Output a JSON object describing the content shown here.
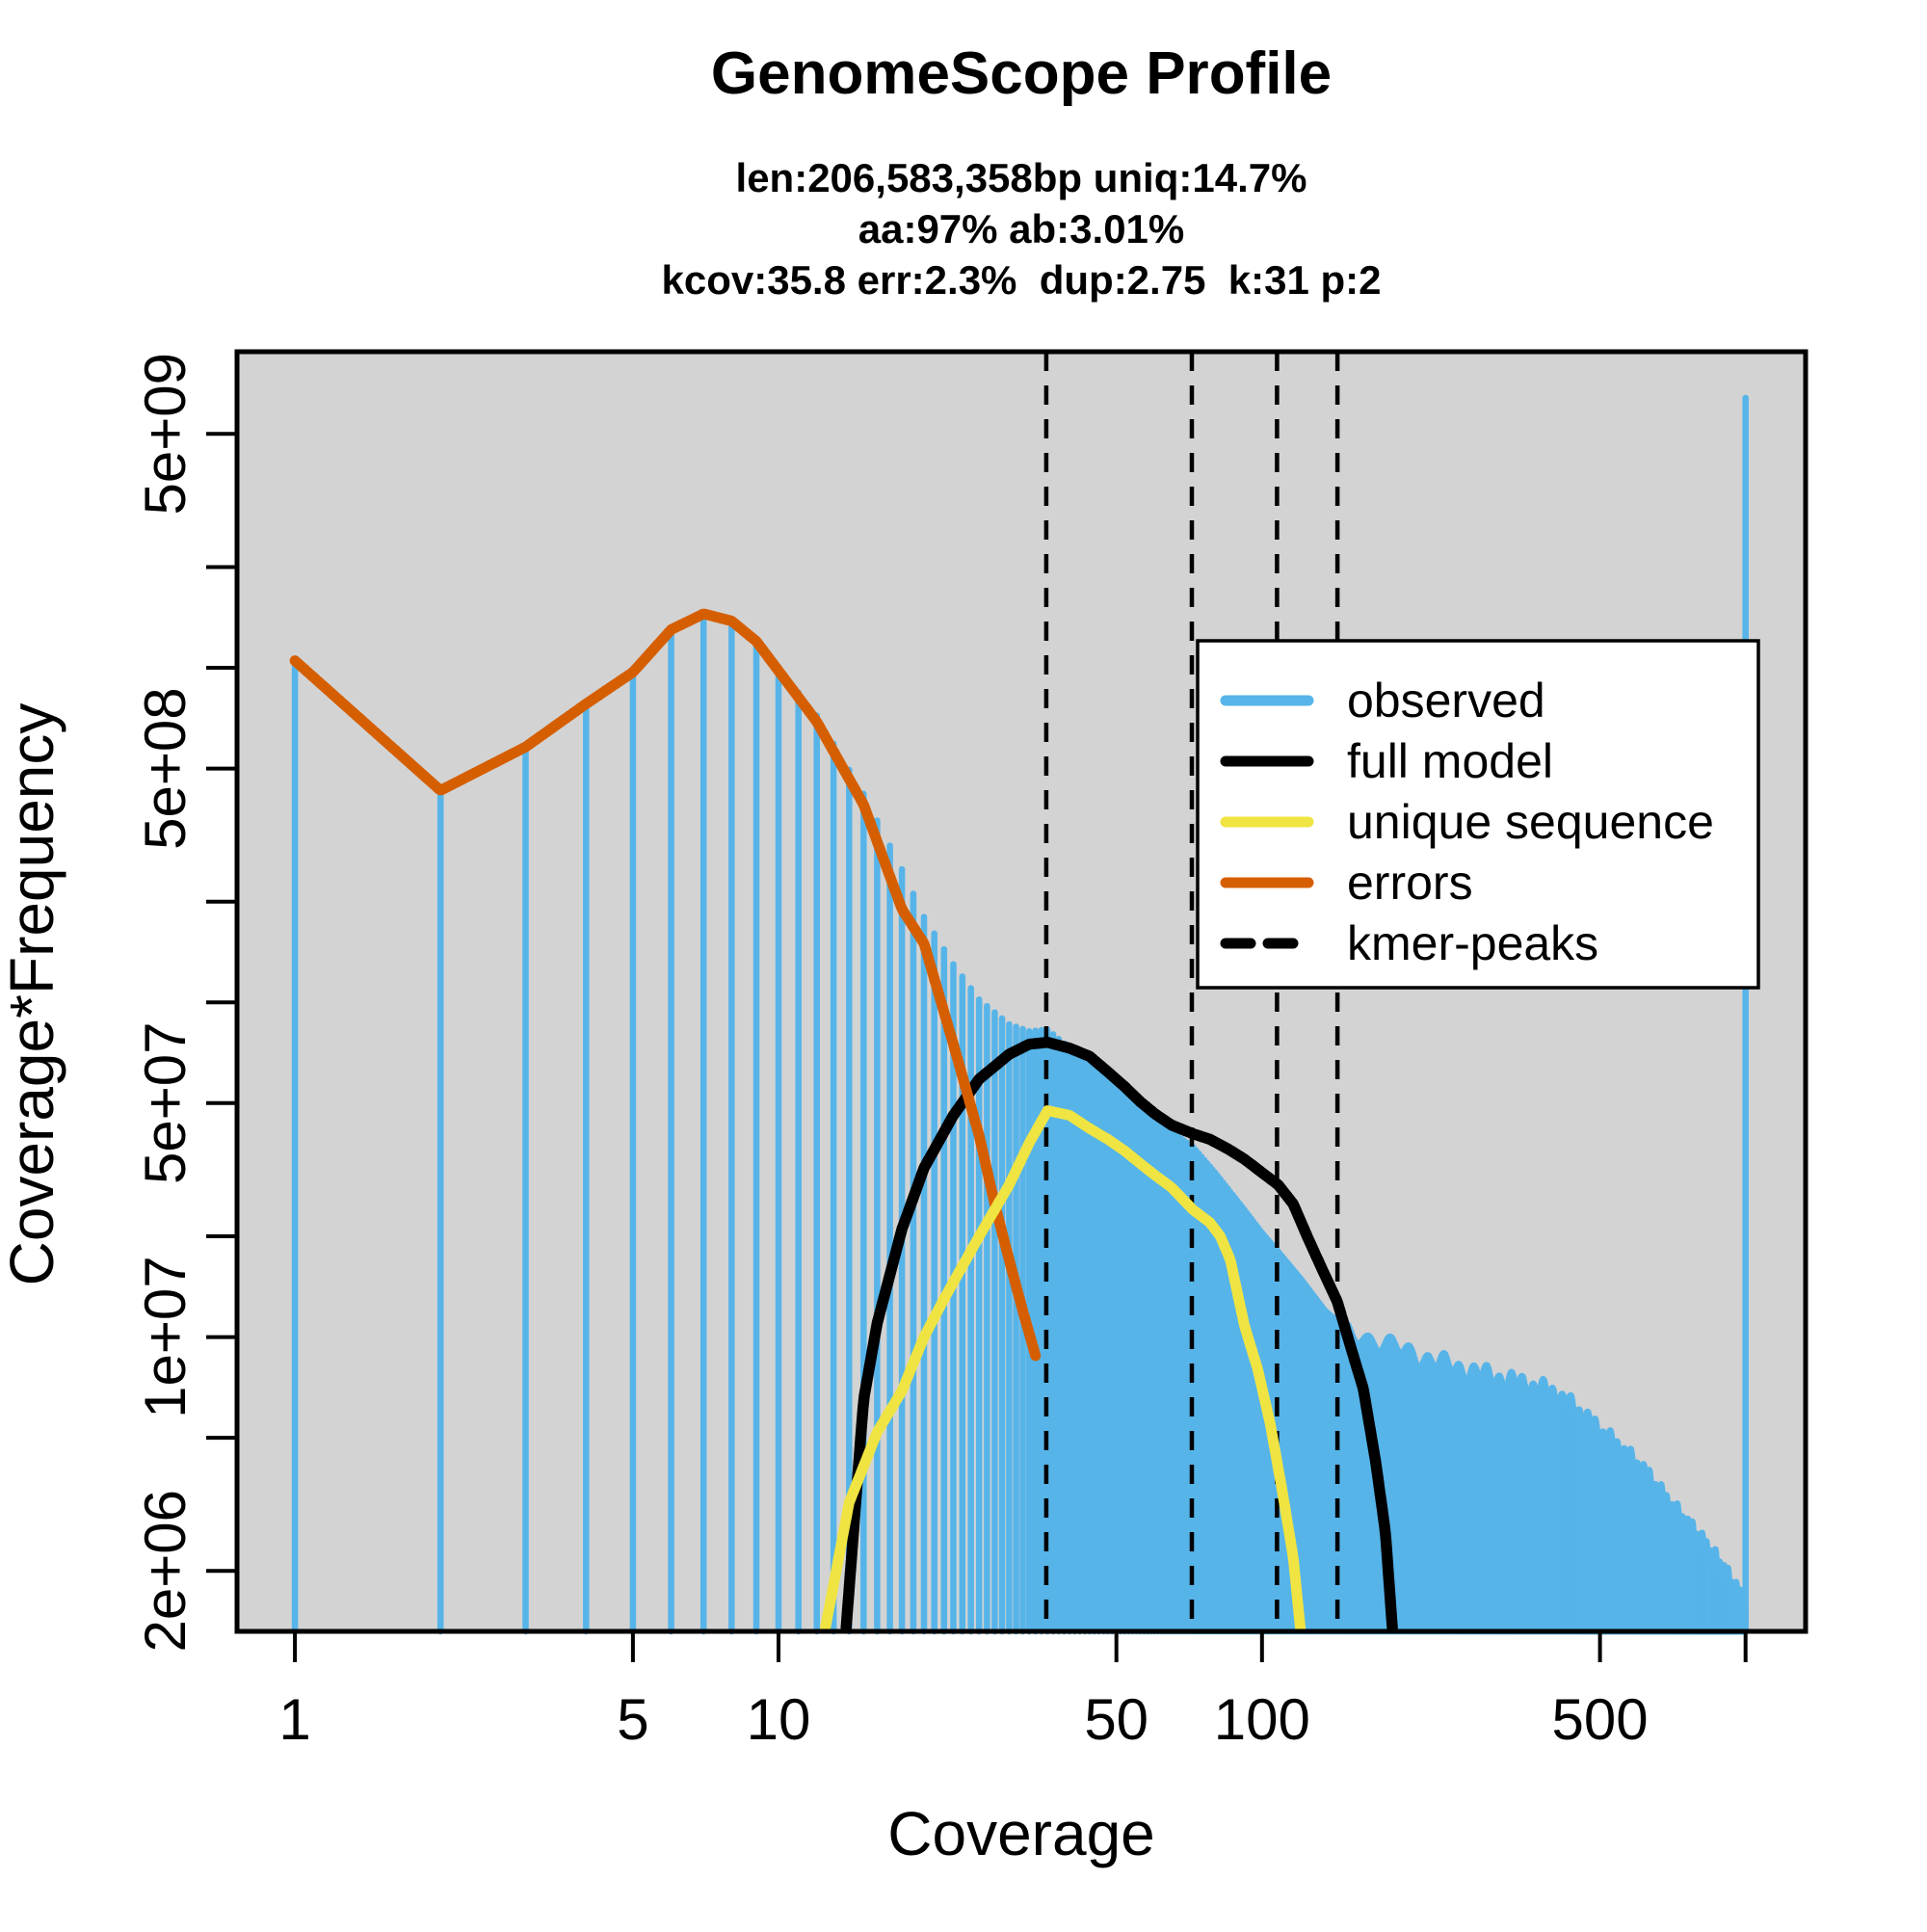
{
  "title": "GenomeScope Profile",
  "subtitle": {
    "line1": "len:206,583,358bp uniq:14.7%",
    "line2": "aa:97% ab:3.01%",
    "line3": "kcov:35.8 err:2.3%  dup:2.75  k:31 p:2"
  },
  "chart_data": {
    "type": "bar",
    "title": "GenomeScope Profile",
    "xlabel": "Coverage",
    "ylabel": "Coverage*Frequency",
    "x_scale": "log",
    "y_scale": "log",
    "xlim": [
      0.759,
      1331
    ],
    "ylim": [
      1320000,
      8800000000
    ],
    "grid": false,
    "legend_position": "top-right",
    "x_ticks": [
      {
        "value": 1,
        "label": "1"
      },
      {
        "value": 5,
        "label": "5"
      },
      {
        "value": 10,
        "label": "10"
      },
      {
        "value": 50,
        "label": "50"
      },
      {
        "value": 100,
        "label": "100"
      },
      {
        "value": 500,
        "label": "500"
      },
      {
        "value": 1000,
        "label": ""
      }
    ],
    "y_ticks": [
      {
        "value": 5000000000.0,
        "label": "5e+09"
      },
      {
        "value": 2000000000.0,
        "label": ""
      },
      {
        "value": 1000000000.0,
        "label": ""
      },
      {
        "value": 500000000.0,
        "label": "5e+08"
      },
      {
        "value": 200000000.0,
        "label": ""
      },
      {
        "value": 100000000.0,
        "label": ""
      },
      {
        "value": 50000000.0,
        "label": "5e+07"
      },
      {
        "value": 20000000.0,
        "label": ""
      },
      {
        "value": 10000000.0,
        "label": "1e+07"
      },
      {
        "value": 5000000.0,
        "label": ""
      },
      {
        "value": 2000000.0,
        "label": "2e+06"
      }
    ],
    "legend": [
      {
        "label": "observed",
        "color": "#56B4E9",
        "style": "solid"
      },
      {
        "label": "full model",
        "color": "#000000",
        "style": "solid"
      },
      {
        "label": "unique sequence",
        "color": "#F0E442",
        "style": "solid"
      },
      {
        "label": "errors",
        "color": "#D55E00",
        "style": "solid"
      },
      {
        "label": "kmer-peaks",
        "color": "#000000",
        "style": "dashed"
      }
    ],
    "kmer_peaks": [
      35.8,
      71.6,
      107.4,
      143.2
    ],
    "series": {
      "observed": {
        "name": "observed",
        "color": "#56B4E9",
        "render": "histogram",
        "coverage_range": [
          1,
          1000
        ],
        "anchors": [
          [
            1,
            1050000000.0
          ],
          [
            2,
            430000000.0
          ],
          [
            3,
            580000000.0
          ],
          [
            4,
            780000000.0
          ],
          [
            5,
            970000000.0
          ],
          [
            6,
            1300000000.0
          ],
          [
            7,
            1450000000.0
          ],
          [
            8,
            1380000000.0
          ],
          [
            9,
            1200000000.0
          ],
          [
            10,
            1000000000.0
          ],
          [
            12,
            720000000.0
          ],
          [
            15,
            420000000.0
          ],
          [
            18,
            250000000.0
          ],
          [
            20,
            180000000.0
          ],
          [
            23,
            130000000.0
          ],
          [
            26,
            102000000.0
          ],
          [
            30,
            86000000.0
          ],
          [
            33,
            82000000.0
          ],
          [
            36,
            83000000.0
          ],
          [
            40,
            73000000.0
          ],
          [
            45,
            64000000.0
          ],
          [
            50,
            56000000.0
          ],
          [
            55,
            49000000.0
          ],
          [
            60,
            44000000.0
          ],
          [
            65,
            41000000.0
          ],
          [
            72,
            37000000.0
          ],
          [
            80,
            31000000.0
          ],
          [
            90,
            25000000.0
          ],
          [
            100,
            20500000.0
          ],
          [
            108,
            18000000.0
          ],
          [
            120,
            15000000.0
          ],
          [
            135,
            12000000.0
          ],
          [
            150,
            10500000.0
          ],
          [
            175,
            9600000.0
          ],
          [
            200,
            9000000.0
          ],
          [
            230,
            8400000.0
          ],
          [
            260,
            8000000.0
          ],
          [
            300,
            7600000.0
          ],
          [
            350,
            7200000.0
          ],
          [
            400,
            6800000.0
          ],
          [
            450,
            6000000.0
          ],
          [
            500,
            5200000.0
          ],
          [
            560,
            4500000.0
          ],
          [
            620,
            3900000.0
          ],
          [
            700,
            3100000.0
          ],
          [
            800,
            2500000.0
          ],
          [
            900,
            2000000.0
          ],
          [
            990,
            1600000.0
          ]
        ],
        "max_coverage_spike": [
          1000,
          6400000000.0
        ]
      },
      "full_model": {
        "name": "full model",
        "color": "#000000",
        "render": "line",
        "anchors": [
          [
            13.8,
            1350000.0
          ],
          [
            15,
            6500000.0
          ],
          [
            16,
            11000000.0
          ],
          [
            18,
            21000000.0
          ],
          [
            20,
            32000000.0
          ],
          [
            23,
            46000000.0
          ],
          [
            26,
            59000000.0
          ],
          [
            30,
            70000000.0
          ],
          [
            33,
            75000000.0
          ],
          [
            36,
            76000000.0
          ],
          [
            40,
            73000000.0
          ],
          [
            44,
            69000000.0
          ],
          [
            48,
            62000000.0
          ],
          [
            52,
            56000000.0
          ],
          [
            56,
            50500000.0
          ],
          [
            60,
            46500000.0
          ],
          [
            65,
            43000000.0
          ],
          [
            72,
            40500000.0
          ],
          [
            78,
            39000000.0
          ],
          [
            85,
            36500000.0
          ],
          [
            92,
            34000000.0
          ],
          [
            100,
            31000000.0
          ],
          [
            108,
            28500000.0
          ],
          [
            116,
            25000000.0
          ],
          [
            124,
            20000000.0
          ],
          [
            133,
            16000000.0
          ],
          [
            143,
            12800000.0
          ],
          [
            152,
            9500000.0
          ],
          [
            162,
            7000000.0
          ],
          [
            172,
            4200000.0
          ],
          [
            180,
            2600000.0
          ],
          [
            186,
            1350000.0
          ]
        ]
      },
      "unique_sequence": {
        "name": "unique sequence",
        "color": "#F0E442",
        "render": "line",
        "anchors": [
          [
            12.5,
            1350000.0
          ],
          [
            14,
            3200000.0
          ],
          [
            16,
            5200000.0
          ],
          [
            18,
            6900000.0
          ],
          [
            20,
            10000000.0
          ],
          [
            22,
            13000000.0
          ],
          [
            26,
            20000000.0
          ],
          [
            30,
            28500000.0
          ],
          [
            33,
            38000000.0
          ],
          [
            36,
            47500000.0
          ],
          [
            40,
            46000000.0
          ],
          [
            44,
            42000000.0
          ],
          [
            48,
            39000000.0
          ],
          [
            52,
            36000000.0
          ],
          [
            56,
            33000000.0
          ],
          [
            60,
            30500000.0
          ],
          [
            65,
            28000000.0
          ],
          [
            72,
            24000000.0
          ],
          [
            78,
            22000000.0
          ],
          [
            82,
            20000000.0
          ],
          [
            86,
            17000000.0
          ],
          [
            92,
            10800000.0
          ],
          [
            98,
            8000000.0
          ],
          [
            104,
            5500000.0
          ],
          [
            110,
            3500000.0
          ],
          [
            116,
            2200000.0
          ],
          [
            120,
            1350000.0
          ]
        ]
      },
      "errors": {
        "name": "errors",
        "color": "#D55E00",
        "render": "line",
        "anchors": [
          [
            1,
            1050000000.0
          ],
          [
            2,
            430000000.0
          ],
          [
            3,
            580000000.0
          ],
          [
            4,
            780000000.0
          ],
          [
            5,
            970000000.0
          ],
          [
            6,
            1300000000.0
          ],
          [
            7,
            1450000000.0
          ],
          [
            8,
            1380000000.0
          ],
          [
            9,
            1200000000.0
          ],
          [
            10,
            980000000.0
          ],
          [
            12,
            690000000.0
          ],
          [
            15,
            390000000.0
          ],
          [
            18,
            190000000.0
          ],
          [
            20,
            150000000.0
          ],
          [
            23,
            75000000.0
          ],
          [
            26,
            40000000.0
          ],
          [
            28,
            25000000.0
          ],
          [
            30,
            17000000.0
          ],
          [
            32,
            12000000.0
          ],
          [
            34,
            8800000.0
          ]
        ]
      }
    }
  },
  "colors": {
    "page_background": "#FFFFFF",
    "panel_background": "#D3D3D3",
    "axis": "#000000",
    "observed": "#56B4E9",
    "full_model": "#000000",
    "unique_sequence": "#F0E442",
    "errors": "#D55E00"
  }
}
